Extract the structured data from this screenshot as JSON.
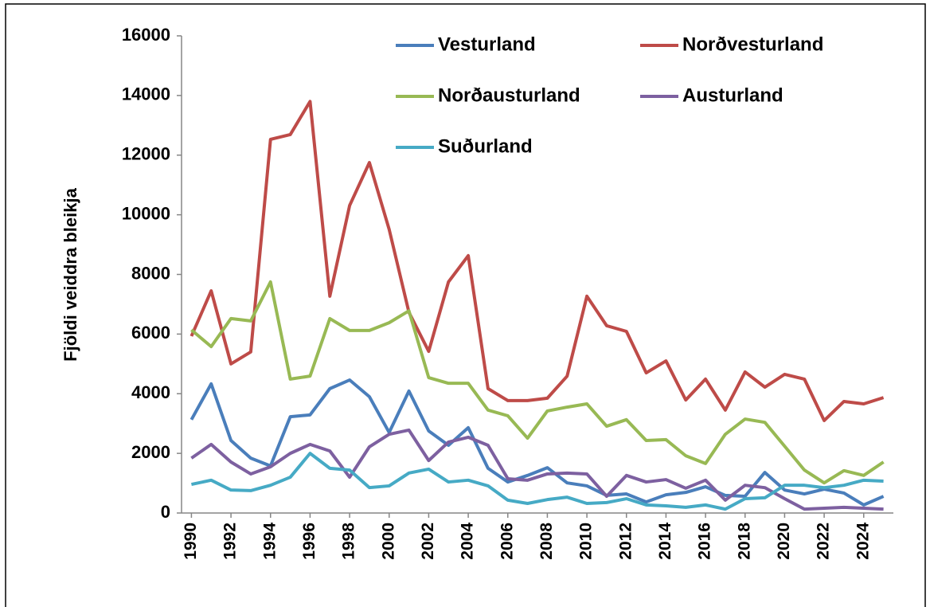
{
  "chart_data": {
    "type": "line",
    "ylabel": "Fjöldi veiddra bleikja",
    "x": [
      1990,
      1991,
      1992,
      1993,
      1994,
      1995,
      1996,
      1997,
      1998,
      1999,
      2000,
      2001,
      2002,
      2003,
      2004,
      2005,
      2006,
      2007,
      2008,
      2009,
      2010,
      2011,
      2012,
      2013,
      2014,
      2015,
      2016,
      2017,
      2018,
      2019,
      2020,
      2021,
      2022,
      2023,
      2024,
      2025
    ],
    "xlim": [
      1989.5,
      2025.5
    ],
    "xticks": [
      1990,
      1992,
      1994,
      1996,
      1998,
      2000,
      2002,
      2004,
      2006,
      2008,
      2010,
      2012,
      2014,
      2016,
      2018,
      2020,
      2022,
      2024
    ],
    "ylim": [
      0,
      16000
    ],
    "yticks": [
      0,
      2000,
      4000,
      6000,
      8000,
      10000,
      12000,
      14000,
      16000
    ],
    "legend": "top-right",
    "series": [
      {
        "name": "Vesturland",
        "color": "#4a7ebb",
        "values": [
          3130,
          4330,
          2430,
          1840,
          1580,
          3230,
          3290,
          4170,
          4460,
          3900,
          2700,
          4090,
          2750,
          2270,
          2860,
          1500,
          1040,
          1260,
          1520,
          1010,
          910,
          590,
          640,
          370,
          610,
          690,
          880,
          590,
          560,
          1360,
          770,
          640,
          800,
          670,
          270,
          560
        ]
      },
      {
        "name": "Norðvesturland",
        "color": "#be4b48",
        "values": [
          5930,
          7450,
          5000,
          5400,
          12530,
          12690,
          13800,
          7270,
          10310,
          11750,
          9510,
          6730,
          5420,
          7750,
          8630,
          4170,
          3770,
          3770,
          3850,
          4590,
          7270,
          6280,
          6090,
          4700,
          5100,
          3790,
          4490,
          3450,
          4730,
          4220,
          4650,
          4490,
          3100,
          3740,
          3660,
          3870
        ]
      },
      {
        "name": "Norðausturland",
        "color": "#98b954",
        "values": [
          6140,
          5580,
          6520,
          6440,
          7750,
          4490,
          4590,
          6520,
          6120,
          6120,
          6380,
          6780,
          4540,
          4350,
          4350,
          3450,
          3260,
          2510,
          3420,
          3550,
          3660,
          2910,
          3130,
          2430,
          2460,
          1920,
          1660,
          2640,
          3150,
          3040,
          2240,
          1440,
          1010,
          1420,
          1260,
          1710
        ]
      },
      {
        "name": "Austurland",
        "color": "#7d60a0",
        "values": [
          1840,
          2300,
          1710,
          1310,
          1550,
          2000,
          2300,
          2080,
          1200,
          2220,
          2640,
          2780,
          1760,
          2380,
          2540,
          2270,
          1150,
          1100,
          1310,
          1340,
          1310,
          560,
          1260,
          1040,
          1120,
          830,
          1100,
          430,
          930,
          850,
          480,
          130,
          160,
          190,
          160,
          130
        ]
      },
      {
        "name": "Suðurland",
        "color": "#46aac5",
        "values": [
          960,
          1100,
          770,
          750,
          930,
          1200,
          2000,
          1500,
          1440,
          850,
          910,
          1340,
          1470,
          1040,
          1100,
          910,
          430,
          320,
          450,
          530,
          320,
          350,
          480,
          270,
          240,
          190,
          270,
          130,
          480,
          510,
          930,
          930,
          850,
          930,
          1100,
          1070
        ]
      }
    ]
  }
}
